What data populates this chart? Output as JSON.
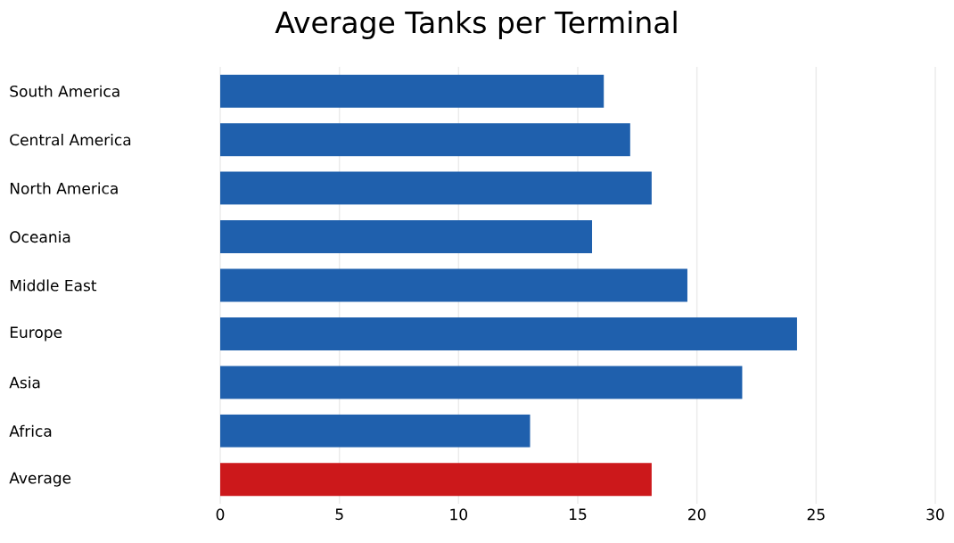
{
  "chart_data": {
    "type": "bar",
    "orientation": "horizontal",
    "title": "Average Tanks per Terminal",
    "categories": [
      "South America",
      "Central America",
      "North America",
      "Oceania",
      "Middle East",
      "Europe",
      "Asia",
      "Africa",
      "Average"
    ],
    "values": [
      16.1,
      17.2,
      18.1,
      15.6,
      19.6,
      24.2,
      21.9,
      13.0,
      18.1
    ],
    "colors": [
      "#1f60ad",
      "#1f60ad",
      "#1f60ad",
      "#1f60ad",
      "#1f60ad",
      "#1f60ad",
      "#1f60ad",
      "#1f60ad",
      "#cc181b"
    ],
    "xlim": [
      0,
      30
    ],
    "xticks": [
      0,
      5,
      10,
      15,
      20,
      25,
      30
    ],
    "grid": "x"
  }
}
